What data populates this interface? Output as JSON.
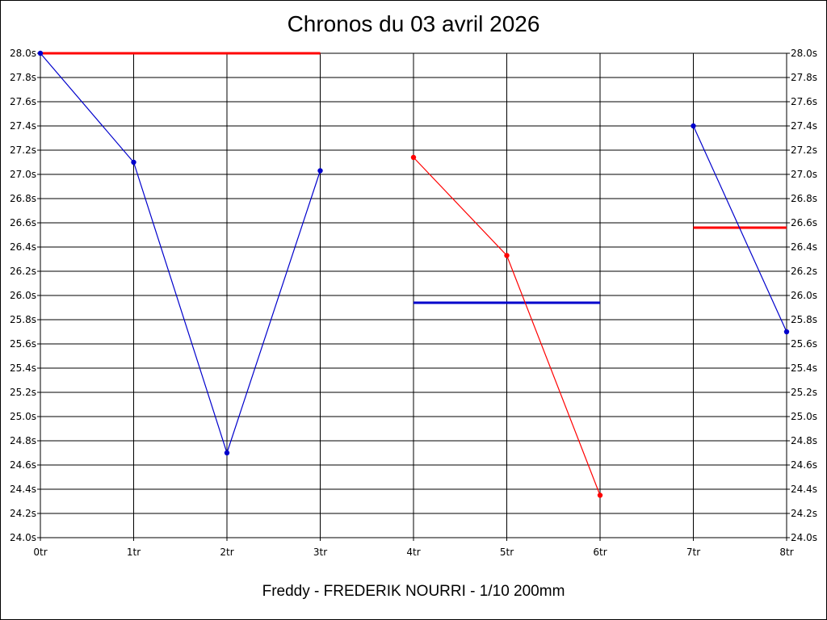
{
  "chart_data": {
    "type": "line",
    "title": "Chronos du 03 avril 2026",
    "footer": "Freddy - FREDERIK NOURRI - 1/10 200mm",
    "y_tick_labels": [
      "28.0s",
      "27.8s",
      "27.6s",
      "27.4s",
      "27.2s",
      "27.0s",
      "26.8s",
      "26.6s",
      "26.4s",
      "26.2s",
      "26.0s",
      "25.8s",
      "25.6s",
      "25.4s",
      "25.2s",
      "25.0s",
      "24.8s",
      "24.6s",
      "24.4s",
      "24.2s",
      "24.0s"
    ],
    "x_tick_labels": [
      "0tr",
      "1tr",
      "2tr",
      "3tr",
      "4tr",
      "5tr",
      "6tr",
      "7tr",
      "8tr"
    ],
    "xlim": [
      0,
      8
    ],
    "ylim": [
      24.0,
      28.0
    ],
    "grid": true,
    "series": [
      {
        "color": "#0000cc",
        "style": "line-markers",
        "x": [
          0,
          1,
          2,
          3
        ],
        "y": [
          28.0,
          27.1,
          24.7,
          27.03
        ]
      },
      {
        "color": "#ff0000",
        "style": "line-markers",
        "x": [
          4,
          5,
          6
        ],
        "y": [
          27.14,
          26.33,
          24.35
        ]
      },
      {
        "color": "#0000cc",
        "style": "line-markers",
        "x": [
          7,
          8
        ],
        "y": [
          27.4,
          25.7
        ]
      }
    ],
    "reference_lines": [
      {
        "color": "#ff0000",
        "x": [
          0,
          3
        ],
        "y": 28.0
      },
      {
        "color": "#0000cc",
        "x": [
          4,
          6
        ],
        "y": 25.94
      },
      {
        "color": "#ff0000",
        "x": [
          7,
          8
        ],
        "y": 26.56
      }
    ]
  }
}
